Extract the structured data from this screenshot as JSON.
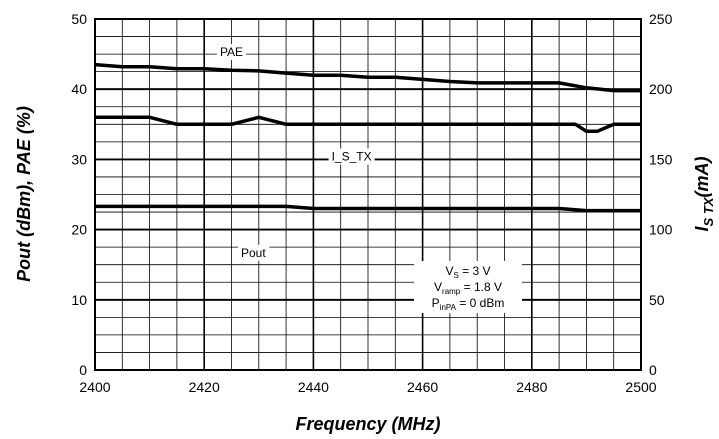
{
  "chart_data": {
    "type": "line",
    "xlabel": "Frequency (MHz)",
    "ylabel": "Pout (dBm), PAE (%)",
    "y2label": {
      "main": "I",
      "sub": "S TX",
      "unit": "(mA)"
    },
    "xlim": [
      2400,
      2500
    ],
    "ylim": [
      0,
      50
    ],
    "y2lim": [
      0,
      250
    ],
    "x_ticks": [
      "2400",
      "2420",
      "2440",
      "2460",
      "2480",
      "2500"
    ],
    "y_ticks": [
      "0",
      "10",
      "20",
      "30",
      "40",
      "50"
    ],
    "y2_ticks": [
      "0",
      "50",
      "100",
      "150",
      "200",
      "250"
    ],
    "grid": true,
    "series": [
      {
        "name": "PAE",
        "axis": "left",
        "x": [
          2400,
          2405,
          2410,
          2415,
          2420,
          2425,
          2430,
          2435,
          2440,
          2445,
          2450,
          2455,
          2460,
          2465,
          2470,
          2475,
          2480,
          2485,
          2490,
          2495,
          2500
        ],
        "y": [
          43.5,
          43.2,
          43.2,
          42.9,
          42.9,
          42.7,
          42.6,
          42.3,
          42.0,
          42.0,
          41.7,
          41.7,
          41.4,
          41.1,
          40.9,
          40.9,
          40.9,
          40.9,
          40.2,
          39.8,
          39.8
        ]
      },
      {
        "name": "I_S_TX",
        "axis": "right",
        "x": [
          2400,
          2405,
          2410,
          2415,
          2420,
          2425,
          2430,
          2435,
          2440,
          2445,
          2450,
          2455,
          2460,
          2465,
          2470,
          2475,
          2480,
          2485,
          2488,
          2490,
          2492,
          2495,
          2500
        ],
        "y": [
          180,
          180,
          180,
          175,
          175,
          175,
          180,
          175,
          175,
          175,
          175,
          175,
          175,
          175,
          175,
          175,
          175,
          175,
          175,
          170,
          170,
          175,
          175
        ]
      },
      {
        "name": "Pout",
        "axis": "left",
        "x": [
          2400,
          2405,
          2410,
          2415,
          2420,
          2425,
          2430,
          2435,
          2440,
          2445,
          2450,
          2455,
          2460,
          2465,
          2470,
          2475,
          2480,
          2485,
          2490,
          2495,
          2500
        ],
        "y": [
          23.3,
          23.3,
          23.3,
          23.3,
          23.3,
          23.3,
          23.3,
          23.3,
          23.0,
          23.0,
          23.0,
          23.0,
          23.0,
          23.0,
          23.0,
          23.0,
          23.0,
          23.0,
          22.7,
          22.7,
          22.7
        ]
      }
    ],
    "conditions": [
      {
        "main": "V",
        "sub": "S",
        "rest": " = 3 V"
      },
      {
        "main": "V",
        "sub": "ramp",
        "rest": " = 1.8 V"
      },
      {
        "main": "P",
        "sub": "inPA",
        "rest": " = 0 dBm"
      }
    ]
  }
}
